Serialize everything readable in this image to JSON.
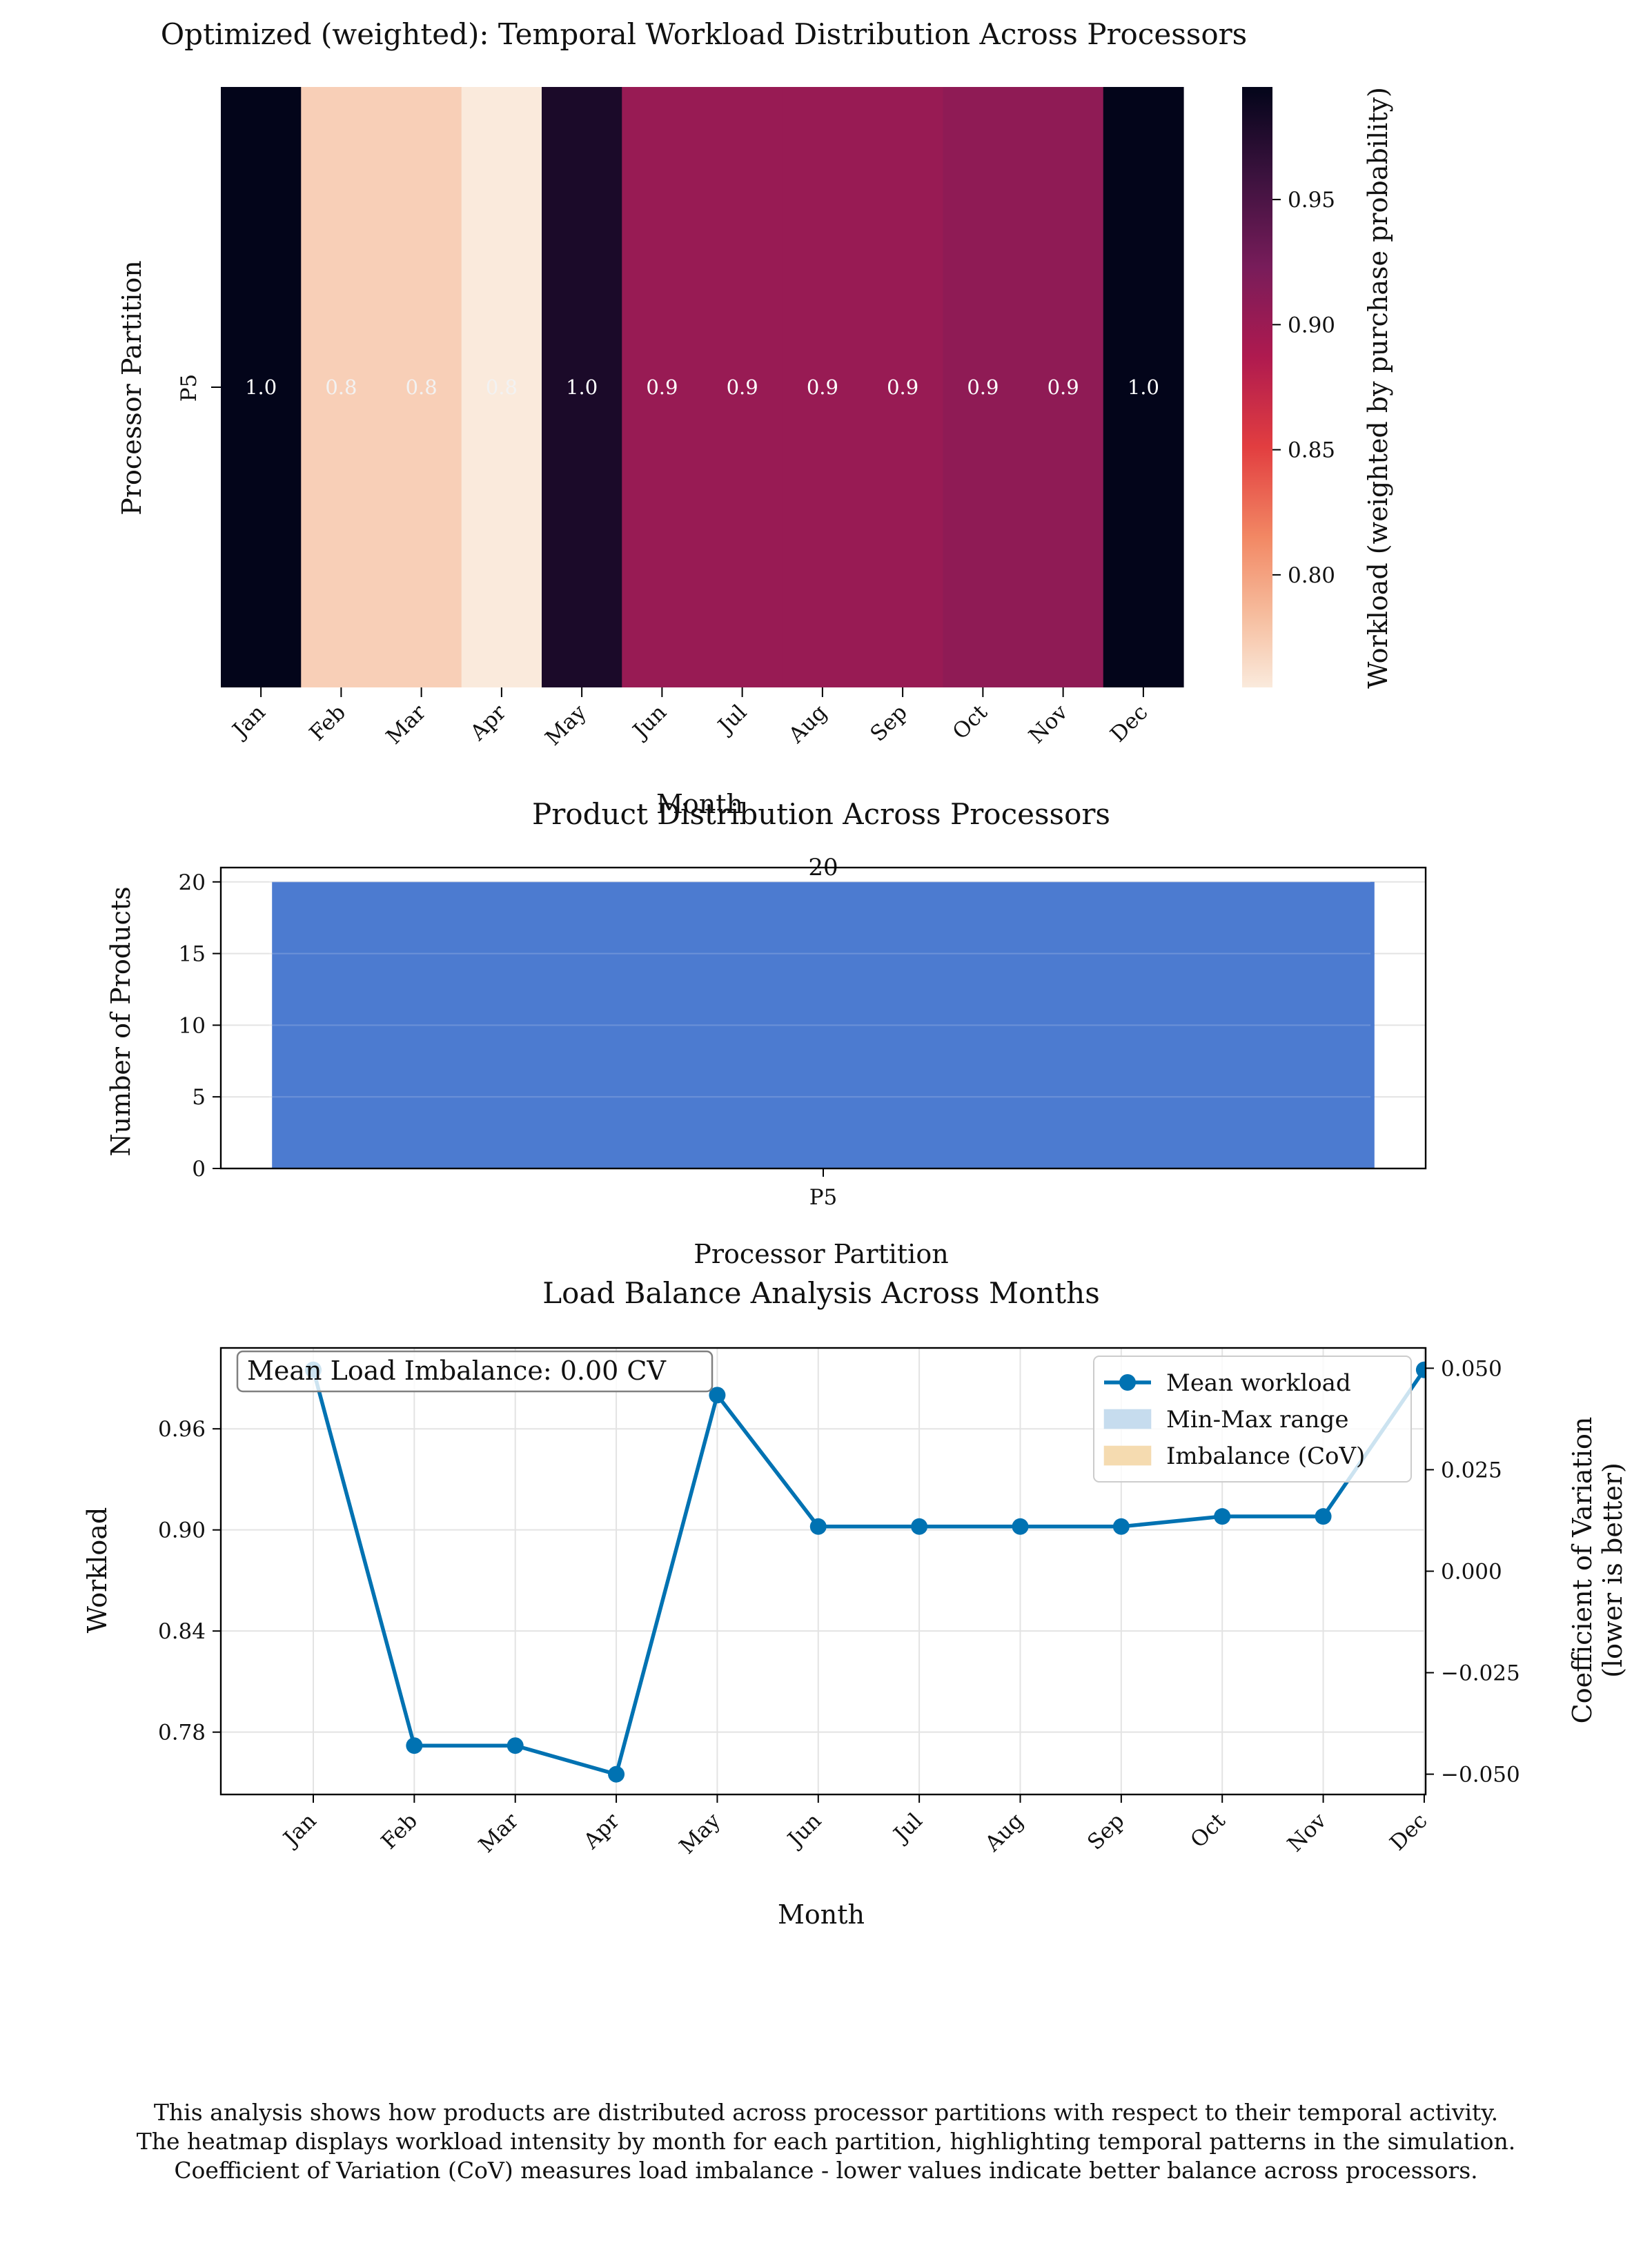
{
  "chart_data": [
    {
      "type": "heatmap",
      "title": "Optimized (weighted): Temporal Workload Distribution Across Processors",
      "xlabel": "Month",
      "ylabel": "Processor Partition",
      "x_categories": [
        "Jan",
        "Feb",
        "Mar",
        "Apr",
        "May",
        "Jun",
        "Jul",
        "Aug",
        "Sep",
        "Oct",
        "Nov",
        "Dec"
      ],
      "y_categories": [
        "P5"
      ],
      "values": [
        [
          0.995,
          0.772,
          0.772,
          0.755,
          0.98,
          0.902,
          0.902,
          0.902,
          0.902,
          0.908,
          0.908,
          0.995
        ]
      ],
      "cell_labels": [
        [
          "1.0",
          "0.8",
          "0.8",
          "0.8",
          "1.0",
          "0.9",
          "0.9",
          "0.9",
          "0.9",
          "0.9",
          "0.9",
          "1.0"
        ]
      ],
      "colorbar": {
        "label": "Workload (weighted by purchase probability)",
        "range": [
          0.755,
          0.995
        ],
        "ticks": [
          "0.80",
          "0.85",
          "0.90",
          "0.95"
        ],
        "tick_values": [
          0.8,
          0.85,
          0.9,
          0.95
        ]
      }
    },
    {
      "type": "bar",
      "title": "Product Distribution Across Processors",
      "xlabel": "Processor Partition",
      "ylabel": "Number of Products",
      "categories": [
        "P5"
      ],
      "values": [
        20
      ],
      "data_labels": [
        "20"
      ],
      "ylim": [
        0,
        21
      ],
      "yticks": [
        "0",
        "5",
        "10",
        "15",
        "20"
      ],
      "ytick_values": [
        0,
        5,
        10,
        15,
        20
      ],
      "grid": true,
      "color": "#4878cf"
    },
    {
      "type": "line",
      "title": "Load Balance Analysis Across Months",
      "xlabel": "Month",
      "ylabel": "Workload",
      "y2label_lines": [
        "Coefficient of Variation",
        "(lower is better)"
      ],
      "categories": [
        "Jan",
        "Feb",
        "Mar",
        "Apr",
        "May",
        "Jun",
        "Jul",
        "Aug",
        "Sep",
        "Oct",
        "Nov",
        "Dec"
      ],
      "series": [
        {
          "name": "Mean workload",
          "values": [
            0.995,
            0.772,
            0.772,
            0.755,
            0.98,
            0.902,
            0.902,
            0.902,
            0.902,
            0.908,
            0.908,
            0.995
          ],
          "color": "#0072b2"
        }
      ],
      "legend": {
        "placement": "top-right",
        "entries": [
          {
            "name": "Mean workload",
            "kind": "line-marker",
            "color": "#0072b2"
          },
          {
            "name": "Min-Max range",
            "kind": "patch",
            "color": "#c6dcee"
          },
          {
            "name": "Imbalance (CoV)",
            "kind": "patch",
            "color": "#f5dbb0"
          }
        ]
      },
      "annotation": "Mean Load Imbalance: 0.00 CV",
      "ylim": [
        0.743,
        1.008
      ],
      "yticks": [
        "0.78",
        "0.84",
        "0.90",
        "0.96"
      ],
      "ytick_values": [
        0.78,
        0.84,
        0.9,
        0.96
      ],
      "y2lim": [
        -0.055,
        0.055
      ],
      "y2ticks": [
        "−0.050",
        "−0.025",
        "0.000",
        "0.025",
        "0.050"
      ],
      "y2tick_values": [
        -0.05,
        -0.025,
        0.0,
        0.025,
        0.05
      ],
      "grid": true
    }
  ],
  "footer": {
    "line1": "This analysis shows how products are distributed across processor partitions with respect to their temporal activity.",
    "line2": "The heatmap displays workload intensity by month for each partition, highlighting temporal patterns in the simulation.",
    "line3": "Coefficient of Variation (CoV) measures load imbalance - lower values indicate better balance across processors."
  }
}
